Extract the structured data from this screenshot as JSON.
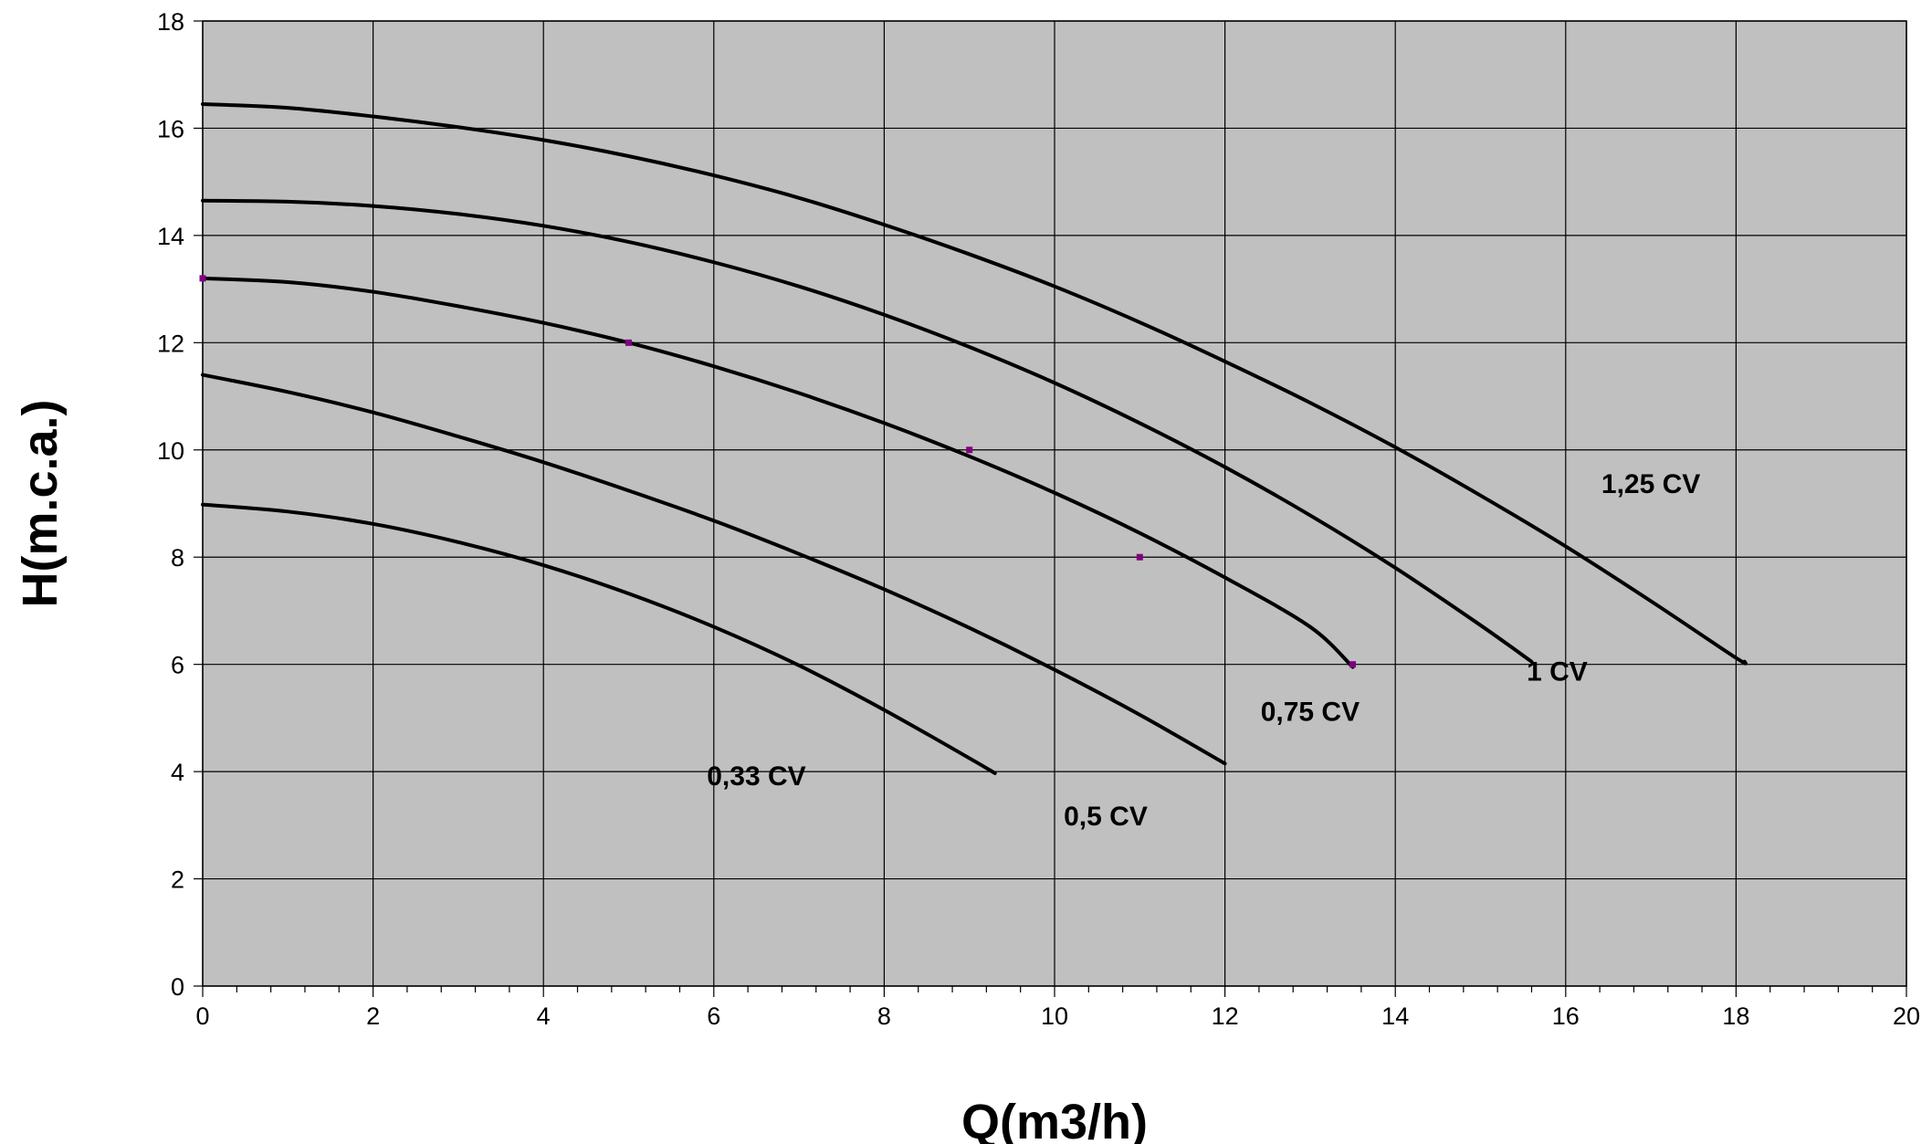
{
  "chart_data": {
    "type": "line",
    "xlabel": "Q(m3/h)",
    "ylabel": "H(m.c.a.)",
    "xlim": [
      0,
      20
    ],
    "ylim": [
      0,
      18
    ],
    "x_ticks": [
      "0",
      "2",
      "4",
      "6",
      "8",
      "10",
      "12",
      "14",
      "16",
      "18",
      "20"
    ],
    "y_ticks": [
      "0",
      "2",
      "4",
      "6",
      "8",
      "10",
      "12",
      "14",
      "16",
      "18"
    ],
    "grid": true,
    "plot_background": "#c0c0c0",
    "line_color": "#000000",
    "marker_color": "#800080",
    "series": [
      {
        "name": "0,33 CV",
        "x": [
          0,
          1,
          2,
          3,
          4,
          5,
          6,
          7,
          8,
          9,
          9.3
        ],
        "y": [
          8.98,
          8.85,
          8.62,
          8.28,
          7.85,
          7.32,
          6.7,
          5.98,
          5.15,
          4.25,
          3.97
        ]
      },
      {
        "name": "0,5 CV",
        "x": [
          0,
          1,
          2,
          3,
          4,
          5,
          6,
          7,
          8,
          9,
          10,
          11,
          12
        ],
        "y": [
          11.4,
          11.08,
          10.7,
          10.25,
          9.77,
          9.24,
          8.68,
          8.06,
          7.4,
          6.68,
          5.9,
          5.06,
          4.15
        ]
      },
      {
        "name": "0,75 CV",
        "x": [
          0,
          1,
          2,
          3,
          4,
          5,
          6,
          7,
          8,
          9,
          10,
          11,
          12,
          13,
          13.5
        ],
        "y": [
          13.2,
          13.13,
          12.95,
          12.68,
          12.37,
          12.0,
          11.56,
          11.06,
          10.5,
          9.88,
          9.2,
          8.45,
          7.62,
          6.7,
          5.95
        ]
      },
      {
        "name": "1 CV",
        "x": [
          0,
          1,
          2,
          3,
          4,
          5,
          6,
          7,
          8,
          9,
          10,
          11,
          12,
          13,
          14,
          15,
          15.6
        ],
        "y": [
          14.65,
          14.63,
          14.55,
          14.4,
          14.18,
          13.88,
          13.5,
          13.05,
          12.52,
          11.92,
          11.25,
          10.5,
          9.68,
          8.78,
          7.8,
          6.73,
          6.05
        ]
      },
      {
        "name": "1,25 CV",
        "x": [
          0,
          1,
          2,
          3,
          4,
          5,
          6,
          7,
          8,
          9,
          10,
          11,
          12,
          13,
          14,
          15,
          16,
          17,
          18,
          18.1
        ],
        "y": [
          16.45,
          16.38,
          16.22,
          16.02,
          15.78,
          15.48,
          15.12,
          14.7,
          14.2,
          13.65,
          13.05,
          12.38,
          11.65,
          10.88,
          10.05,
          9.15,
          8.2,
          7.18,
          6.12,
          6.05
        ]
      }
    ],
    "points": [
      {
        "x": 0,
        "y": 13.2
      },
      {
        "x": 5,
        "y": 12.0
      },
      {
        "x": 9,
        "y": 10.0
      },
      {
        "x": 11,
        "y": 8.0
      },
      {
        "x": 13.5,
        "y": 6.0
      }
    ],
    "annotations": [
      {
        "text": "0,33 CV",
        "x": 6.5,
        "y": 3.75
      },
      {
        "text": "0,5 CV",
        "x": 10.6,
        "y": 3.0
      },
      {
        "text": "0,75 CV",
        "x": 13.0,
        "y": 4.95
      },
      {
        "text": "1 CV",
        "x": 15.9,
        "y": 5.7
      },
      {
        "text": "1,25 CV",
        "x": 17.0,
        "y": 9.2
      }
    ]
  }
}
